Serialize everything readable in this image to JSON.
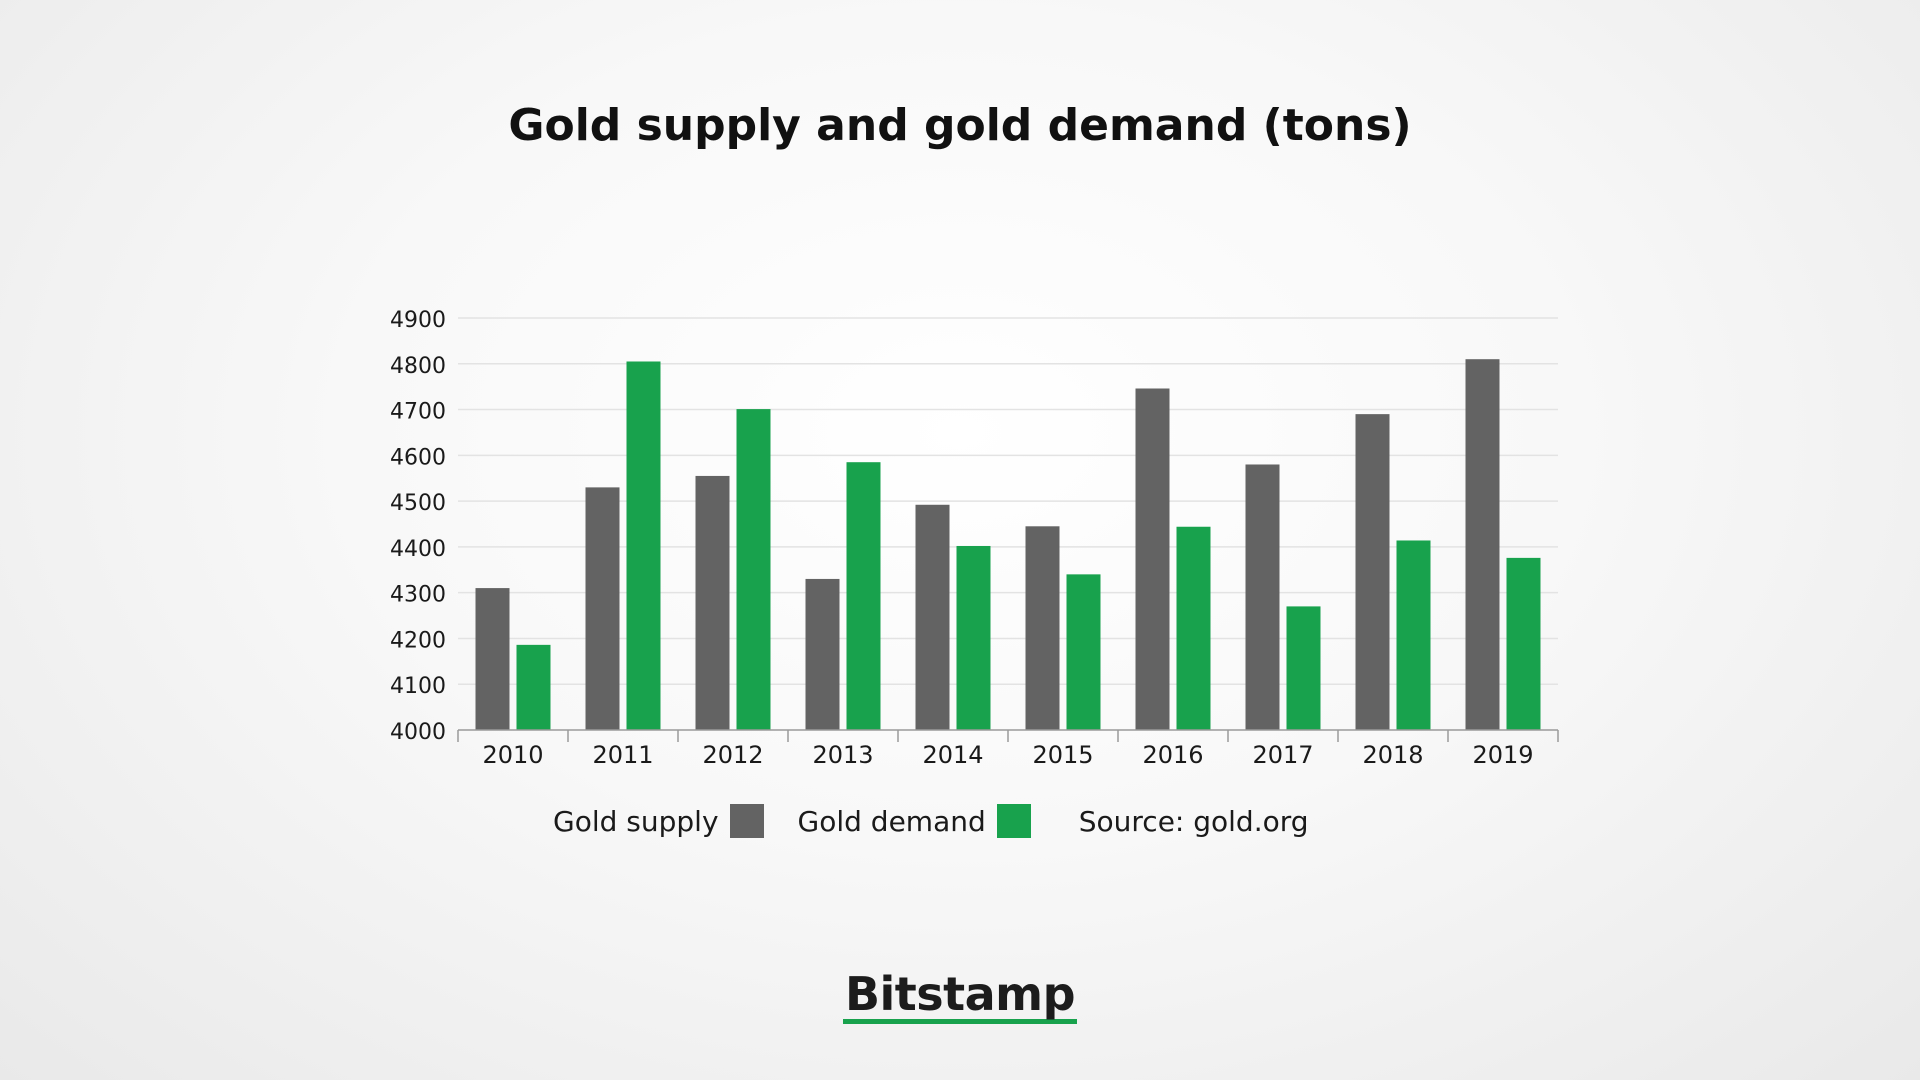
{
  "colors": {
    "supply": "#636363",
    "demand": "#18a24d",
    "grid": "#e3e3e3",
    "axis": "#9a9a9a",
    "text": "#1a1a1a",
    "brand_underline": "#18a24d"
  },
  "legend": {
    "supply_label": "Gold supply",
    "demand_label": "Gold demand",
    "source": "Source: gold.org"
  },
  "brand": {
    "logo_text": "Bitstamp"
  },
  "chart_data": {
    "type": "bar",
    "title": "Gold supply and gold demand (tons)",
    "xlabel": "",
    "ylabel": "",
    "categories": [
      "2010",
      "2011",
      "2012",
      "2013",
      "2014",
      "2015",
      "2016",
      "2017",
      "2018",
      "2019"
    ],
    "series": [
      {
        "name": "Gold supply",
        "values": [
          4310,
          4530,
          4555,
          4330,
          4492,
          4445,
          4746,
          4580,
          4690,
          4810
        ]
      },
      {
        "name": "Gold demand",
        "values": [
          4186,
          4805,
          4701,
          4585,
          4402,
          4340,
          4444,
          4270,
          4414,
          4376
        ]
      }
    ],
    "ylim": [
      4000,
      4900
    ],
    "yticks": [
      4000,
      4100,
      4200,
      4300,
      4400,
      4500,
      4600,
      4700,
      4800,
      4900
    ],
    "grid": true,
    "legend_position": "bottom"
  }
}
